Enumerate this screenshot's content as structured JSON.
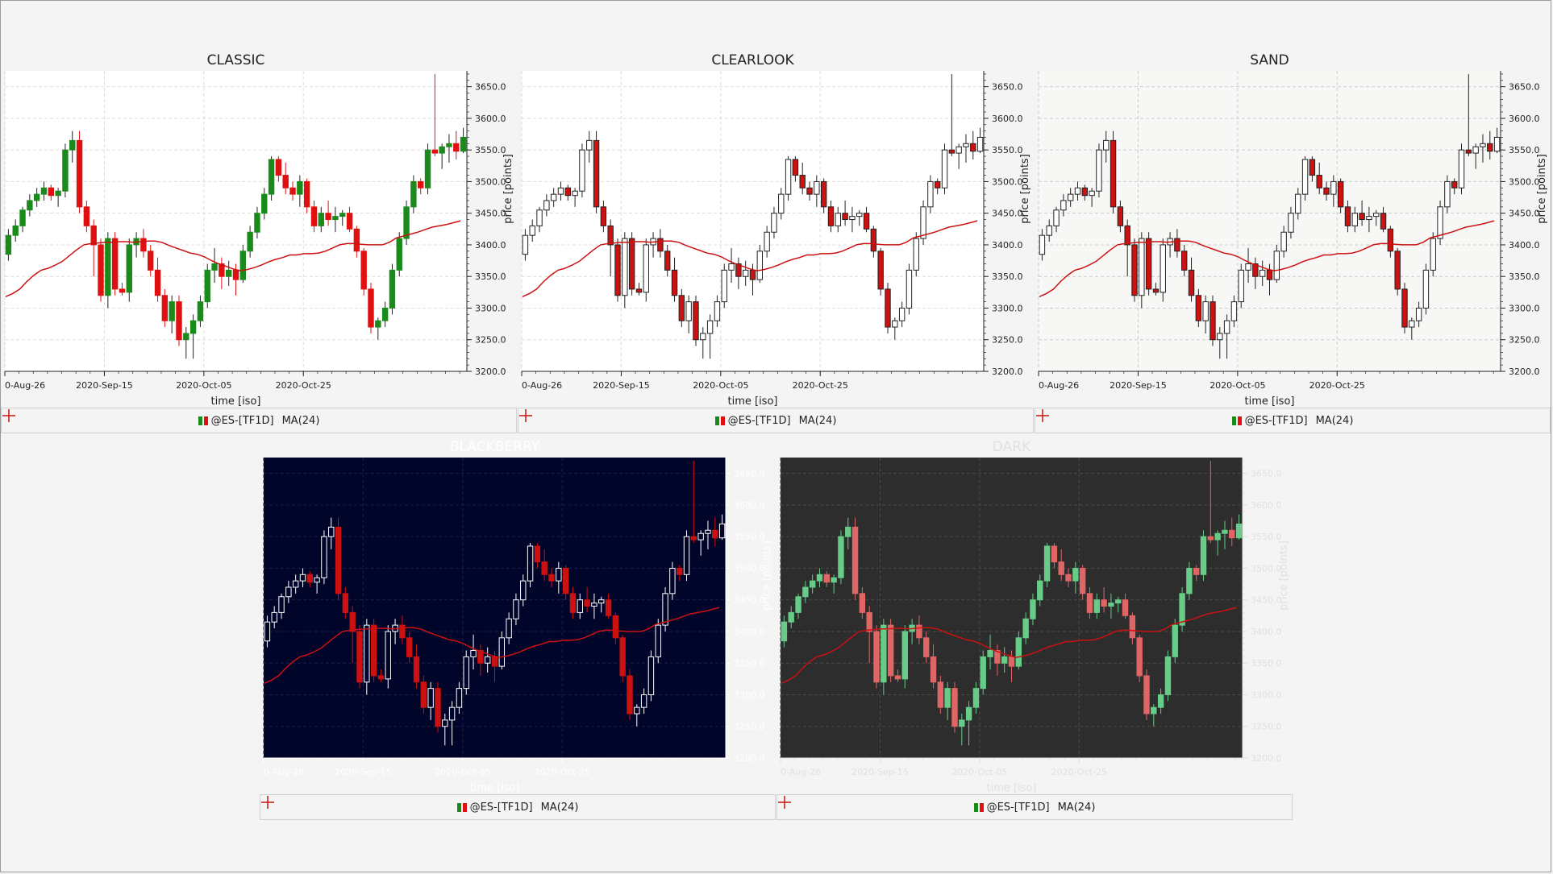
{
  "chart_data": {
    "type": "candlestick",
    "xlabel": "time [iso]",
    "ylabel": "price [points]",
    "ylim": [
      3200,
      3675
    ],
    "yticks": [
      "3200.0",
      "3250.0",
      "3300.0",
      "3350.0",
      "3400.0",
      "3450.0",
      "3500.0",
      "3550.0",
      "3600.0",
      "3650.0"
    ],
    "xticks": [
      "0-Aug-26",
      "2020-Sep-15",
      "2020-Oct-05",
      "2020-Oct-25"
    ],
    "xtick_index": [
      0,
      14,
      28,
      42
    ],
    "legend": {
      "series_label": "@ES-[TF1D]",
      "ma_label": "MA(24)",
      "placement": "bottom"
    },
    "ohlc": [
      [
        3385,
        3425,
        3375,
        3415
      ],
      [
        3415,
        3440,
        3405,
        3430
      ],
      [
        3430,
        3460,
        3420,
        3455
      ],
      [
        3455,
        3480,
        3445,
        3470
      ],
      [
        3470,
        3490,
        3460,
        3480
      ],
      [
        3480,
        3500,
        3470,
        3490
      ],
      [
        3490,
        3495,
        3470,
        3478
      ],
      [
        3478,
        3490,
        3460,
        3485
      ],
      [
        3485,
        3560,
        3475,
        3550
      ],
      [
        3550,
        3580,
        3530,
        3565
      ],
      [
        3565,
        3580,
        3450,
        3460
      ],
      [
        3460,
        3470,
        3420,
        3430
      ],
      [
        3430,
        3440,
        3350,
        3400
      ],
      [
        3400,
        3410,
        3310,
        3320
      ],
      [
        3320,
        3420,
        3300,
        3410
      ],
      [
        3410,
        3420,
        3320,
        3330
      ],
      [
        3330,
        3340,
        3320,
        3325
      ],
      [
        3325,
        3410,
        3310,
        3400
      ],
      [
        3400,
        3420,
        3380,
        3410
      ],
      [
        3410,
        3425,
        3380,
        3390
      ],
      [
        3390,
        3400,
        3350,
        3360
      ],
      [
        3360,
        3380,
        3310,
        3320
      ],
      [
        3320,
        3330,
        3270,
        3280
      ],
      [
        3280,
        3320,
        3260,
        3310
      ],
      [
        3310,
        3320,
        3240,
        3250
      ],
      [
        3250,
        3270,
        3220,
        3260
      ],
      [
        3260,
        3290,
        3220,
        3280
      ],
      [
        3280,
        3320,
        3270,
        3310
      ],
      [
        3310,
        3370,
        3300,
        3360
      ],
      [
        3360,
        3395,
        3340,
        3370
      ],
      [
        3370,
        3380,
        3330,
        3350
      ],
      [
        3350,
        3375,
        3335,
        3360
      ],
      [
        3360,
        3370,
        3320,
        3345
      ],
      [
        3345,
        3400,
        3340,
        3390
      ],
      [
        3390,
        3430,
        3380,
        3420
      ],
      [
        3420,
        3460,
        3410,
        3450
      ],
      [
        3450,
        3490,
        3440,
        3480
      ],
      [
        3480,
        3540,
        3470,
        3535
      ],
      [
        3535,
        3540,
        3500,
        3510
      ],
      [
        3510,
        3530,
        3480,
        3490
      ],
      [
        3490,
        3500,
        3470,
        3480
      ],
      [
        3480,
        3510,
        3460,
        3500
      ],
      [
        3500,
        3505,
        3450,
        3460
      ],
      [
        3460,
        3470,
        3420,
        3430
      ],
      [
        3430,
        3460,
        3420,
        3450
      ],
      [
        3450,
        3470,
        3430,
        3440
      ],
      [
        3440,
        3460,
        3420,
        3445
      ],
      [
        3445,
        3455,
        3430,
        3450
      ],
      [
        3450,
        3460,
        3420,
        3425
      ],
      [
        3425,
        3430,
        3380,
        3390
      ],
      [
        3390,
        3395,
        3320,
        3330
      ],
      [
        3330,
        3340,
        3260,
        3270
      ],
      [
        3270,
        3285,
        3250,
        3280
      ],
      [
        3280,
        3310,
        3270,
        3300
      ],
      [
        3300,
        3370,
        3290,
        3360
      ],
      [
        3360,
        3420,
        3350,
        3410
      ],
      [
        3410,
        3470,
        3400,
        3460
      ],
      [
        3460,
        3510,
        3450,
        3500
      ],
      [
        3500,
        3505,
        3480,
        3490
      ],
      [
        3490,
        3560,
        3480,
        3550
      ],
      [
        3550,
        3670,
        3540,
        3545
      ],
      [
        3545,
        3560,
        3520,
        3555
      ],
      [
        3555,
        3575,
        3530,
        3560
      ],
      [
        3560,
        3580,
        3535,
        3548
      ],
      [
        3548,
        3585,
        3545,
        3570
      ]
    ],
    "ma": [
      3318,
      3323,
      3330,
      3342,
      3352,
      3360,
      3363,
      3368,
      3374,
      3383,
      3392,
      3400,
      3402,
      3403,
      3404,
      3404,
      3405,
      3405,
      3404,
      3405,
      3406,
      3406,
      3404,
      3399,
      3395,
      3391,
      3387,
      3385,
      3381,
      3375,
      3370,
      3366,
      3362,
      3359,
      3361,
      3364,
      3368,
      3373,
      3377,
      3380,
      3384,
      3384,
      3386,
      3386,
      3387,
      3390,
      3395,
      3400,
      3402,
      3402,
      3401,
      3400,
      3400,
      3400,
      3404,
      3411,
      3414,
      3417,
      3420,
      3424,
      3428,
      3430,
      3432,
      3435,
      3438
    ]
  },
  "panels": [
    {
      "title": "CLASSIC",
      "colors": {
        "bg": "#ffffff",
        "grid": "#dddddd",
        "text": "#222222",
        "up": "#1a8a1a",
        "down": "#e01010",
        "upFill": "#1a8a1a",
        "downFill": "#e01010",
        "wick": "#222222",
        "ma": "#cc1111"
      }
    },
    {
      "title": "CLEARLOOK",
      "colors": {
        "bg": "#ffffff",
        "grid": "#dddddd",
        "text": "#222222",
        "up": "#222222",
        "down": "#222222",
        "upFill": "#ffffff",
        "downFill": "#cc1111",
        "wick": "#222222",
        "ma": "#cc1111"
      }
    },
    {
      "title": "SAND",
      "colors": {
        "bg": "#f7f7f5",
        "grid": "#cccccc",
        "text": "#222222",
        "up": "#222222",
        "down": "#222222",
        "upFill": "#ffffff",
        "downFill": "#cc1111",
        "wick": "#222222",
        "ma": "#cc1111"
      }
    },
    {
      "title": "BLACKBERRY",
      "colors": {
        "bg": "#02052a",
        "grid": "#1a1f4a",
        "text": "#ffffff",
        "up": "#ffffff",
        "down": "#cc1111",
        "upFill": "#02052a",
        "downFill": "#cc1111",
        "wick": "#ffffff",
        "ma": "#cc1111"
      }
    },
    {
      "title": "DARK",
      "colors": {
        "bg": "#2d2d2d",
        "grid": "#4a4a4a",
        "text": "#e0e0e0",
        "up": "#66cc88",
        "down": "#e06666",
        "upFill": "#66cc88",
        "downFill": "#e06666",
        "wick": "#cccccc",
        "ma": "#cc1111"
      }
    }
  ]
}
